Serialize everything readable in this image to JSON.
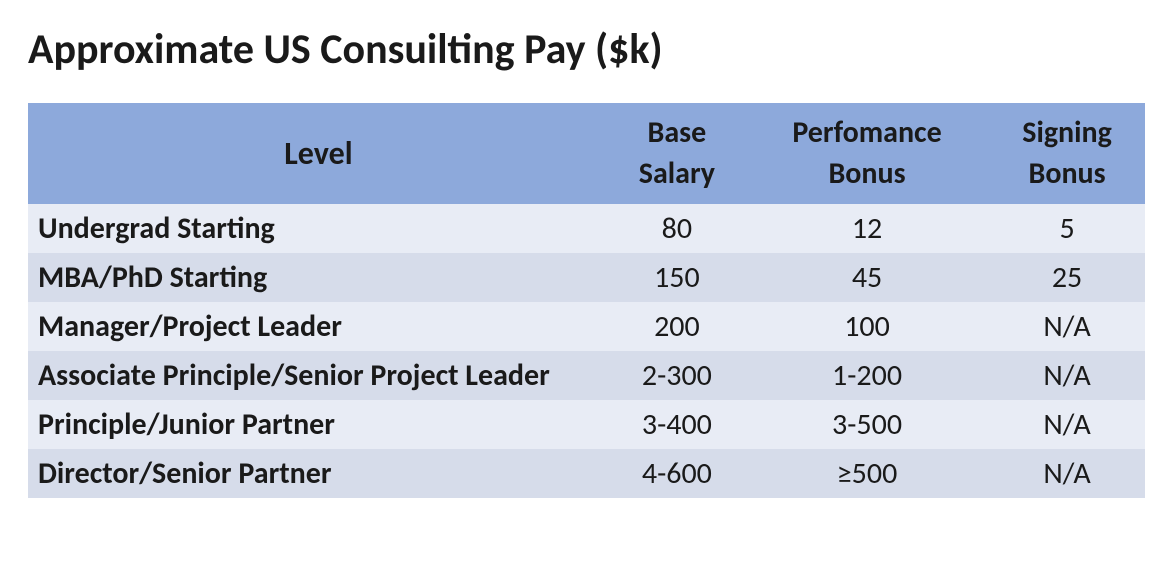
{
  "title": "Approximate US Consuilting Pay ($k)",
  "table": {
    "type": "table",
    "header_background": "#8da9db",
    "row_background": "#d6dcea",
    "row_alt_background": "#e8ecf5",
    "text_color": "#1a1a1a",
    "title_fontsize": 42,
    "cell_fontsize": 30,
    "columns": [
      {
        "line1": "Level",
        "line2": "",
        "align": "center"
      },
      {
        "line1": "Base",
        "line2": "Salary",
        "align": "center"
      },
      {
        "line1": "Perfomance",
        "line2": "Bonus",
        "align": "center"
      },
      {
        "line1": "Signing",
        "line2": "Bonus",
        "align": "center"
      }
    ],
    "rows": [
      {
        "level": "Undergrad Starting",
        "base": "80",
        "perf": "12",
        "sign": "5"
      },
      {
        "level": "MBA/PhD Starting",
        "base": "150",
        "perf": "45",
        "sign": "25"
      },
      {
        "level": "Manager/Project Leader",
        "base": "200",
        "perf": "100",
        "sign": "N/A"
      },
      {
        "level": "Associate Principle/Senior Project Leader",
        "base": "2-300",
        "perf": "1-200",
        "sign": "N/A"
      },
      {
        "level": "Principle/Junior Partner",
        "base": "3-400",
        "perf": "3-500",
        "sign": "N/A"
      },
      {
        "level": "Director/Senior Partner",
        "base": "4-600",
        "perf": "≥500",
        "sign": "N/A"
      }
    ]
  }
}
